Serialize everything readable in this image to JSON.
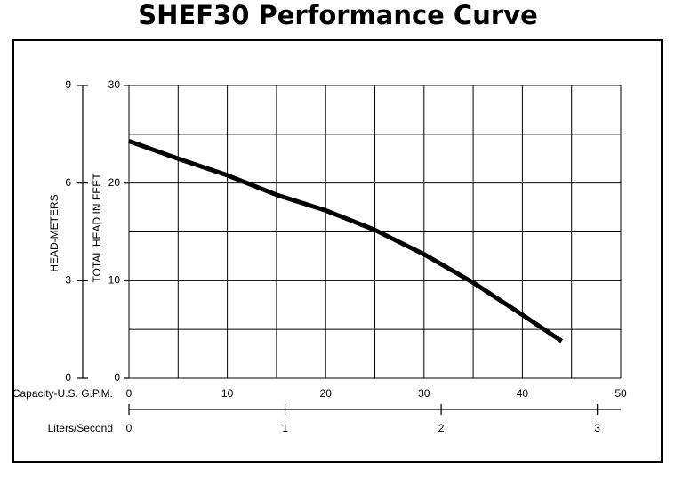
{
  "chart_data": {
    "type": "line",
    "title": "SHEF30 Performance Curve",
    "xlabel": "Capacity-U.S. G.P.M.",
    "x2label": "Liters/Second",
    "ylabel": "TOTAL HEAD IN FEET",
    "y2label": "HEAD-METERS",
    "xlim": [
      0,
      50
    ],
    "xticks": [
      0,
      10,
      20,
      30,
      40,
      50
    ],
    "xgrid": [
      0,
      5,
      10,
      15,
      20,
      25,
      30,
      35,
      40,
      45,
      50
    ],
    "x2lim": [
      0,
      3.15
    ],
    "x2ticks": [
      0,
      1,
      2,
      3
    ],
    "ylim": [
      0,
      30
    ],
    "yticks": [
      0,
      10,
      20,
      30
    ],
    "ygrid": [
      0,
      5,
      10,
      15,
      20,
      25,
      30
    ],
    "y2lim": [
      0,
      9
    ],
    "y2ticks": [
      0,
      3,
      6,
      9
    ],
    "grid": true,
    "series": [
      {
        "color": "#000000",
        "x": [
          0,
          5,
          10,
          15,
          20,
          25,
          30,
          35,
          40,
          44
        ],
        "values": [
          24.3,
          22.5,
          20.8,
          18.8,
          17.2,
          15.2,
          12.7,
          9.8,
          6.5,
          3.8
        ]
      }
    ]
  }
}
